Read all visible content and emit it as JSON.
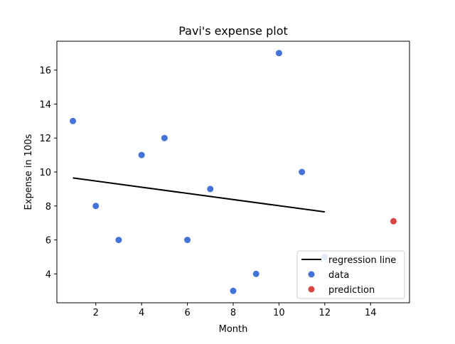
{
  "chart_data": {
    "type": "scatter",
    "title": "Pavi's expense plot",
    "xlabel": "Month",
    "ylabel": "Expense in 100s",
    "xlim": [
      0.3,
      15.7
    ],
    "ylim": [
      2.3,
      17.7
    ],
    "xticks": [
      2,
      4,
      6,
      8,
      10,
      12,
      14
    ],
    "yticks": [
      4,
      6,
      8,
      10,
      12,
      14,
      16
    ],
    "grid": false,
    "legend_position": "lower right",
    "series": [
      {
        "name": "data",
        "kind": "scatter",
        "color": "#4472d8",
        "x": [
          1,
          2,
          3,
          4,
          5,
          6,
          7,
          8,
          9,
          10,
          11,
          12
        ],
        "y": [
          13,
          8,
          6,
          11,
          12,
          6,
          9,
          3,
          4,
          17,
          10,
          5
        ]
      },
      {
        "name": "prediction",
        "kind": "scatter",
        "color": "#d94444",
        "x": [
          15
        ],
        "y": [
          7.1
        ]
      },
      {
        "name": "regression line",
        "kind": "line",
        "color": "#000000",
        "x": [
          1,
          12
        ],
        "y": [
          9.65,
          7.65
        ]
      }
    ]
  }
}
